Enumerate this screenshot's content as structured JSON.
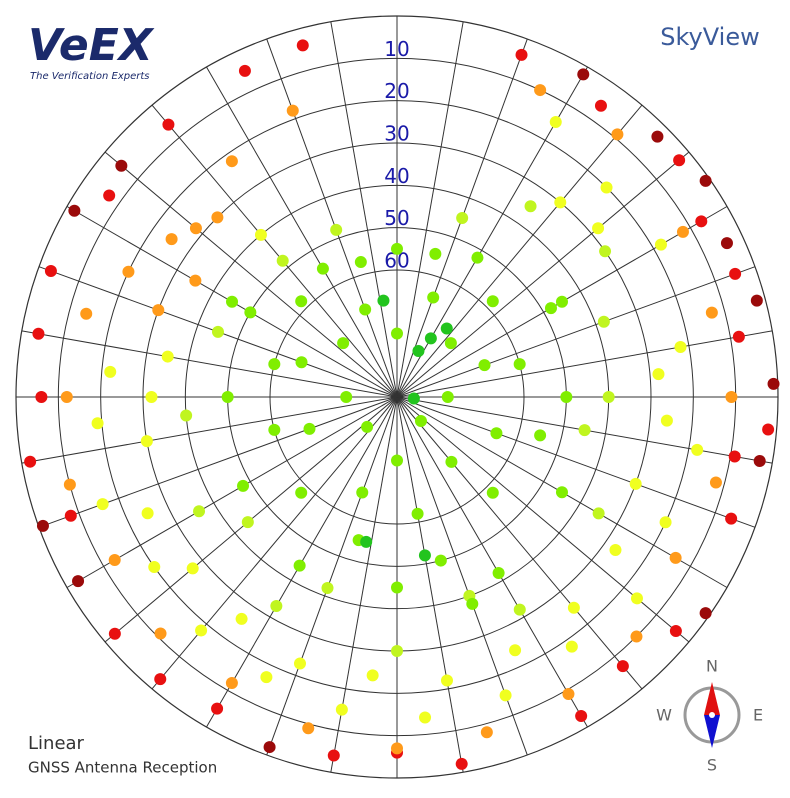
{
  "logo": {
    "brand": "VeEX",
    "tagline": "The Verification Experts"
  },
  "compass": {
    "n": "N",
    "e": "E",
    "s": "S",
    "w": "W"
  },
  "chart_data": {
    "type": "skyplot",
    "title": "SkyView",
    "scale_label": "Linear",
    "caption": "GNSS Antenna Reception",
    "rlim": [
      0,
      90
    ],
    "rticks": [
      10,
      20,
      30,
      40,
      50,
      60
    ],
    "azticks": [
      0,
      10,
      20,
      30,
      40,
      50,
      60,
      70,
      80,
      90,
      100,
      110,
      120,
      130,
      140,
      150,
      160,
      170,
      180,
      190,
      200,
      210,
      220,
      230,
      240,
      250,
      260,
      270,
      280,
      290,
      300,
      310,
      320,
      330,
      340,
      350
    ],
    "grid": true,
    "series": [
      {
        "color": "#9b0a0a",
        "az": [
          30,
          45,
          55,
          65,
          75,
          88,
          100,
          300,
          310,
          125,
          200,
          250,
          240
        ],
        "el": [
          2,
          3,
          1,
          4,
          2,
          1,
          3,
          2,
          5,
          1,
          2,
          1,
          3
        ]
      },
      {
        "color": "#e81010",
        "az": [
          20,
          35,
          50,
          70,
          80,
          95,
          110,
          130,
          150,
          170,
          190,
          210,
          230,
          260,
          270,
          280,
          290,
          305,
          320,
          335,
          345,
          60,
          100,
          140,
          180,
          220,
          250
        ],
        "el": [
          4,
          6,
          3,
          5,
          8,
          2,
          6,
          4,
          3,
          2,
          4,
          5,
          3,
          2,
          6,
          4,
          3,
          7,
          6,
          5,
          4,
          7,
          9,
          7,
          6,
          3,
          8
        ]
      },
      {
        "color": "#ff9a1a",
        "az": [
          25,
          40,
          60,
          75,
          90,
          105,
          120,
          135,
          150,
          165,
          180,
          195,
          210,
          225,
          240,
          255,
          270,
          285,
          295,
          305,
          315,
          325,
          340,
          290,
          300,
          310
        ],
        "el": [
          10,
          9,
          12,
          13,
          11,
          12,
          14,
          10,
          9,
          8,
          7,
          9,
          12,
          11,
          13,
          10,
          12,
          14,
          20,
          25,
          30,
          22,
          18,
          30,
          35,
          28
        ]
      },
      {
        "color": "#f0ff20",
        "az": [
          30,
          45,
          60,
          80,
          100,
          115,
          130,
          145,
          160,
          175,
          190,
          205,
          220,
          235,
          250,
          265,
          275,
          85,
          95,
          110,
          125,
          140,
          155,
          170,
          185,
          200,
          215,
          230,
          245,
          260,
          270,
          280,
          50,
          40,
          320
        ],
        "el": [
          15,
          20,
          18,
          22,
          18,
          20,
          16,
          18,
          15,
          14,
          15,
          17,
          18,
          20,
          16,
          19,
          22,
          28,
          26,
          30,
          27,
          25,
          24,
          22,
          24,
          23,
          26,
          27,
          25,
          30,
          32,
          35,
          28,
          30,
          40
        ]
      },
      {
        "color": "#c0f51f",
        "az": [
          35,
          55,
          70,
          90,
          120,
          150,
          180,
          210,
          240,
          265,
          290,
          320,
          20,
          340,
          100,
          160,
          200,
          230
        ],
        "el": [
          35,
          30,
          38,
          40,
          35,
          32,
          30,
          33,
          36,
          40,
          45,
          48,
          45,
          48,
          45,
          40,
          42,
          44
        ]
      },
      {
        "color": "#80ee00",
        "az": [
          0,
          30,
          60,
          90,
          120,
          150,
          180,
          210,
          240,
          270,
          300,
          330,
          15,
          45,
          75,
          105,
          135,
          165,
          195,
          225,
          255,
          285,
          315,
          345,
          20,
          70,
          110,
          140,
          170,
          200,
          250,
          290,
          340,
          0,
          180,
          90,
          270,
          135,
          225,
          45,
          315,
          60,
          300,
          160
        ],
        "el": [
          55,
          52,
          48,
          50,
          45,
          42,
          45,
          44,
          48,
          50,
          50,
          55,
          55,
          58,
          60,
          55,
          58,
          50,
          55,
          58,
          60,
          60,
          58,
          57,
          65,
          68,
          65,
          70,
          62,
          66,
          68,
          66,
          68,
          75,
          75,
          78,
          78,
          82,
          80,
          72,
          72,
          45,
          45,
          38
        ]
      },
      {
        "color": "#22c41e",
        "az": [
          36,
          30,
          25,
          95,
          352,
          192,
          170
        ],
        "el": [
          70,
          74,
          78,
          86,
          67,
          55,
          52
        ]
      }
    ]
  }
}
